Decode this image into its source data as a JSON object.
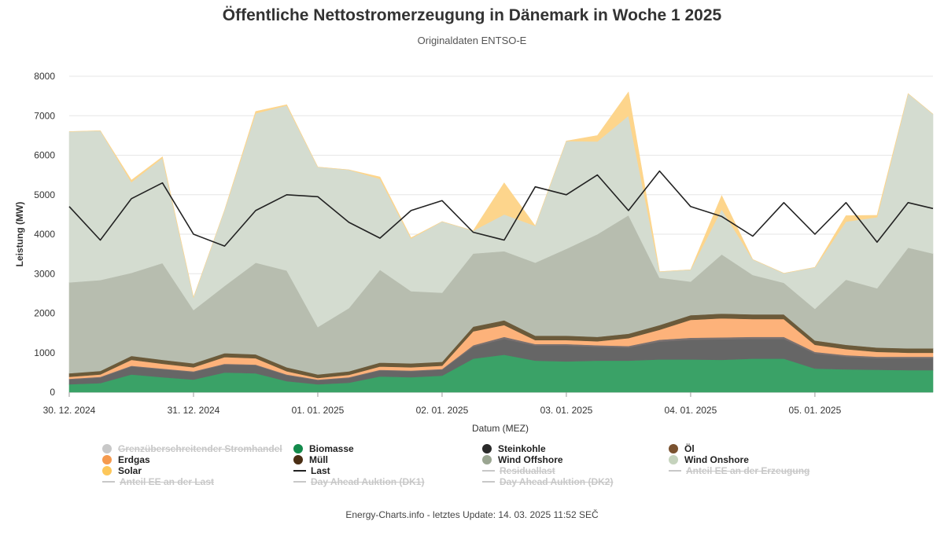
{
  "header": {
    "title": "Öffentliche Nettostromerzeugung in Dänemark in Woche 1 2025",
    "subtitle": "Originaldaten ENTSO-E"
  },
  "footer": {
    "text": "Energy-Charts.info - letztes Update: 14. 03. 2025 11:52 SEČ"
  },
  "legend": [
    {
      "label": "Grenzüberschreitender Stromhandel",
      "color": "#c0c0c0",
      "marker": "dot",
      "hidden": true
    },
    {
      "label": "Biomasse",
      "color": "#138a4b",
      "marker": "dot",
      "hidden": false
    },
    {
      "label": "Steinkohle",
      "color": "#2a2a2a",
      "marker": "dot",
      "hidden": false
    },
    {
      "label": "Öl",
      "color": "#7a5230",
      "marker": "dot",
      "hidden": false
    },
    {
      "label": "Erdgas",
      "color": "#f59a4e",
      "marker": "dot",
      "hidden": false
    },
    {
      "label": "Müll",
      "color": "#4a2e14",
      "marker": "dot",
      "hidden": false
    },
    {
      "label": "Wind Offshore",
      "color": "#9aa591",
      "marker": "dot",
      "hidden": false
    },
    {
      "label": "Wind Onshore",
      "color": "#c5d3bd",
      "marker": "dot",
      "hidden": false
    },
    {
      "label": "Solar",
      "color": "#fdc75a",
      "marker": "dot",
      "hidden": false
    },
    {
      "label": "Last",
      "color": "#222222",
      "marker": "line",
      "hidden": false
    },
    {
      "label": "Residuallast",
      "color": "#c8c8c8",
      "marker": "line",
      "hidden": true
    },
    {
      "label": "Anteil EE an der Erzeugung",
      "color": "#c8c8c8",
      "marker": "line",
      "hidden": true
    },
    {
      "label": "Anteil EE an der Last",
      "color": "#c8c8c8",
      "marker": "line",
      "hidden": true
    },
    {
      "label": "Day Ahead Auktion (DK1)",
      "color": "#c8c8c8",
      "marker": "line",
      "hidden": true
    },
    {
      "label": "Day Ahead Auktion (DK2)",
      "color": "#c8c8c8",
      "marker": "line",
      "hidden": true
    }
  ],
  "chart_data": {
    "type": "area",
    "title": "Öffentliche Nettostromerzeugung in Dänemark in Woche 1 2025",
    "subtitle": "Originaldaten ENTSO-E",
    "xlabel": "Datum (MEZ)",
    "ylabel": "Leistung (MW)",
    "ylim": [
      0,
      8000
    ],
    "yticks": [
      0,
      1000,
      2000,
      3000,
      4000,
      5000,
      6000,
      7000,
      8000
    ],
    "x_ticks": [
      "30. 12. 2024",
      "31. 12. 2024",
      "01. 01. 2025",
      "02. 01. 2025",
      "03. 01. 2025",
      "04. 01. 2025",
      "05. 01. 2025"
    ],
    "x_unit": "Tage ab 30. 12. 2024 00:00",
    "x": [
      0,
      0.25,
      0.5,
      0.75,
      1,
      1.25,
      1.5,
      1.75,
      2,
      2.25,
      2.5,
      2.75,
      3,
      3.25,
      3.5,
      3.75,
      4,
      4.25,
      4.5,
      4.75,
      5,
      5.25,
      5.5,
      5.75,
      6,
      6.25,
      6.5,
      6.75,
      6.95
    ],
    "stacking": "normal",
    "grid": true,
    "series": [
      {
        "name": "Biomasse",
        "color": "#3aa267",
        "values": [
          200,
          230,
          450,
          380,
          320,
          500,
          480,
          280,
          200,
          240,
          400,
          380,
          420,
          850,
          950,
          800,
          780,
          800,
          800,
          830,
          830,
          820,
          850,
          850,
          600,
          580,
          570,
          560,
          560
        ]
      },
      {
        "name": "Steinkohle",
        "color": "#666666",
        "values": [
          120,
          140,
          200,
          200,
          190,
          200,
          200,
          150,
          100,
          120,
          150,
          150,
          150,
          300,
          400,
          380,
          400,
          350,
          330,
          450,
          500,
          520,
          500,
          500,
          380,
          320,
          290,
          300,
          300
        ]
      },
      {
        "name": "Öl",
        "color": "#7a7170",
        "values": [
          20,
          20,
          20,
          20,
          20,
          20,
          20,
          20,
          20,
          20,
          20,
          20,
          20,
          40,
          50,
          40,
          40,
          40,
          40,
          50,
          50,
          50,
          50,
          50,
          40,
          40,
          40,
          40,
          40
        ]
      },
      {
        "name": "Erdgas",
        "color": "#fdb27a",
        "values": [
          50,
          60,
          150,
          120,
          100,
          170,
          160,
          80,
          40,
          60,
          80,
          80,
          80,
          350,
          300,
          100,
          100,
          100,
          200,
          250,
          450,
          480,
          450,
          450,
          180,
          150,
          120,
          100,
          100
        ]
      },
      {
        "name": "Müll",
        "color": "#6b5a3a",
        "values": [
          90,
          90,
          100,
          100,
          100,
          100,
          100,
          100,
          90,
          90,
          100,
          100,
          100,
          120,
          120,
          110,
          110,
          110,
          110,
          120,
          120,
          120,
          120,
          120,
          110,
          110,
          110,
          110,
          110
        ]
      },
      {
        "name": "Wind Offshore",
        "color": "#b7bdaf",
        "values": [
          2300,
          2300,
          2100,
          2450,
          1350,
          1700,
          2320,
          2450,
          1200,
          1600,
          2350,
          1830,
          1750,
          1850,
          1750,
          1850,
          2200,
          2600,
          3000,
          1200,
          850,
          1500,
          1000,
          800,
          800,
          1650,
          1500,
          2550,
          2400
        ]
      },
      {
        "name": "Wind Onshore",
        "color": "#d4dcd0",
        "values": [
          3820,
          3780,
          2300,
          2660,
          320,
          1920,
          3780,
          4180,
          4050,
          3500,
          2300,
          1330,
          1800,
          580,
          930,
          930,
          2730,
          2350,
          2520,
          150,
          300,
          1140,
          390,
          240,
          1050,
          1470,
          1800,
          3900,
          3530
        ]
      },
      {
        "name": "Solar",
        "color": "#fdd58c",
        "values": [
          0,
          0,
          50,
          30,
          0,
          0,
          50,
          20,
          0,
          0,
          50,
          20,
          0,
          0,
          800,
          0,
          0,
          150,
          600,
          0,
          0,
          350,
          0,
          0,
          0,
          150,
          50,
          0,
          0
        ]
      }
    ],
    "line_series": {
      "name": "Last",
      "color": "#222222",
      "values": [
        4700,
        3850,
        4900,
        5300,
        4000,
        3700,
        4600,
        5000,
        4950,
        4300,
        3900,
        4600,
        4850,
        4050,
        3850,
        5200,
        5000,
        5500,
        4600,
        5600,
        4700,
        4450,
        3950,
        4800,
        4000,
        4800,
        3800,
        4800,
        4650
      ]
    }
  }
}
